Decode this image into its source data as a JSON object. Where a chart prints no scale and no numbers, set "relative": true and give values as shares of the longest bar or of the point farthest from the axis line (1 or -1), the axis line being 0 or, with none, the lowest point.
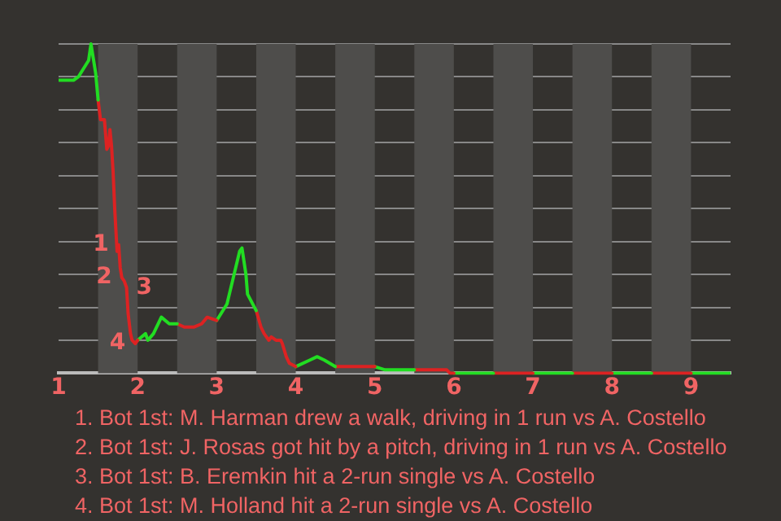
{
  "chart_data": {
    "type": "line",
    "relative": true,
    "xlim": [
      1,
      9.5
    ],
    "xticks": [
      1,
      2,
      3,
      4,
      5,
      6,
      7,
      8,
      9
    ],
    "series": [
      {
        "color": "#22dd22",
        "x": [
          1,
          1.19,
          1.25,
          1.38,
          1.41,
          1.47,
          1.5
        ],
        "values": [
          0.89,
          0.89,
          0.9,
          0.95,
          1,
          0.91,
          0.83
        ]
      },
      {
        "color": "#dd2222",
        "x": [
          1.5,
          1.53,
          1.58,
          1.61,
          1.63,
          1.65,
          1.67,
          1.69,
          1.71,
          1.74,
          1.76,
          1.78,
          1.8,
          1.83,
          1.86,
          1.88,
          1.91,
          1.93,
          1.97,
          2
        ],
        "values": [
          0.83,
          0.77,
          0.77,
          0.68,
          0.69,
          0.74,
          0.69,
          0.61,
          0.5,
          0.37,
          0.39,
          0.32,
          0.29,
          0.28,
          0.26,
          0.18,
          0.12,
          0.1,
          0.09,
          0.1
        ]
      },
      {
        "color": "#22dd22",
        "x": [
          2,
          2.1,
          2.13,
          2.2,
          2.3,
          2.4,
          2.5
        ],
        "values": [
          0.1,
          0.12,
          0.1,
          0.12,
          0.17,
          0.15,
          0.15
        ]
      },
      {
        "color": "#dd2222",
        "x": [
          2.5,
          2.59,
          2.71,
          2.81,
          2.88,
          3
        ],
        "values": [
          0.15,
          0.14,
          0.14,
          0.15,
          0.17,
          0.16
        ]
      },
      {
        "color": "#22dd22",
        "x": [
          3,
          3.13,
          3.21,
          3.29,
          3.32,
          3.37,
          3.39,
          3.5
        ],
        "values": [
          0.16,
          0.21,
          0.29,
          0.37,
          0.38,
          0.3,
          0.24,
          0.19
        ]
      },
      {
        "color": "#dd2222",
        "x": [
          3.5,
          3.56,
          3.6,
          3.66,
          3.69,
          3.75,
          3.81,
          3.83,
          3.88,
          3.92,
          4
        ],
        "values": [
          0.19,
          0.14,
          0.12,
          0.1,
          0.11,
          0.1,
          0.1,
          0.09,
          0.05,
          0.03,
          0.02
        ]
      },
      {
        "color": "#22dd22",
        "x": [
          4,
          4.18,
          4.27,
          4.36,
          4.5
        ],
        "values": [
          0.02,
          0.04,
          0.05,
          0.04,
          0.02
        ]
      },
      {
        "color": "#dd2222",
        "x": [
          4.5,
          5
        ],
        "values": [
          0.02,
          0.02
        ]
      },
      {
        "color": "#22dd22",
        "x": [
          5,
          5.13,
          5.5
        ],
        "values": [
          0.02,
          0.01,
          0.01
        ]
      },
      {
        "color": "#dd2222",
        "x": [
          5.5,
          5.91,
          5.95,
          6
        ],
        "values": [
          0.01,
          0.01,
          0,
          0
        ]
      },
      {
        "color": "#22dd22",
        "x": [
          6,
          6.5
        ],
        "values": [
          0,
          0
        ]
      },
      {
        "color": "#dd2222",
        "x": [
          6.5,
          7
        ],
        "values": [
          0,
          0
        ]
      },
      {
        "color": "#22dd22",
        "x": [
          7,
          7.5
        ],
        "values": [
          0,
          0
        ]
      },
      {
        "color": "#dd2222",
        "x": [
          7.5,
          8
        ],
        "values": [
          0,
          0
        ]
      },
      {
        "color": "#22dd22",
        "x": [
          8,
          8.5
        ],
        "values": [
          0,
          0
        ]
      },
      {
        "color": "#dd2222",
        "x": [
          8.5,
          9
        ],
        "values": [
          0,
          0
        ]
      },
      {
        "color": "#22dd22",
        "x": [
          9,
          9.5
        ],
        "values": [
          0,
          0
        ]
      }
    ],
    "bands": [
      {
        "axis": "x",
        "from": 1.5,
        "to": 2,
        "color": "#4e4d4b"
      },
      {
        "axis": "x",
        "from": 2.5,
        "to": 3,
        "color": "#4e4d4b"
      },
      {
        "axis": "x",
        "from": 3.5,
        "to": 4,
        "color": "#4e4d4b"
      },
      {
        "axis": "x",
        "from": 4.5,
        "to": 5,
        "color": "#4e4d4b"
      },
      {
        "axis": "x",
        "from": 5.5,
        "to": 6,
        "color": "#4e4d4b"
      },
      {
        "axis": "x",
        "from": 6.5,
        "to": 7,
        "color": "#4e4d4b"
      },
      {
        "axis": "x",
        "from": 7.5,
        "to": 8,
        "color": "#4e4d4b"
      },
      {
        "axis": "x",
        "from": 8.5,
        "to": 9,
        "color": "#4e4d4b"
      }
    ],
    "annotations": [
      {
        "text": "1",
        "x": 1.76,
        "y": 0.39
      },
      {
        "text": "2",
        "x": 1.8,
        "y": 0.29
      },
      {
        "text": "3",
        "x": 1.86,
        "y": 0.26
      },
      {
        "text": "4",
        "x": 1.97,
        "y": 0.09
      },
      "1. Bot 1st: M. Harman drew a walk, driving in 1 run vs A. Costello",
      "2. Bot 1st: J. Rosas got hit by a pitch, driving in 1 run vs A. Costello",
      "3. Bot 1st: B. Eremkin hit a 2-run single vs A. Costello",
      "4. Bot 1st: M. Holland hit a 2-run single vs A. Costello"
    ],
    "grid": "y",
    "marker": "none",
    "line_style": "solid",
    "legend": false
  }
}
